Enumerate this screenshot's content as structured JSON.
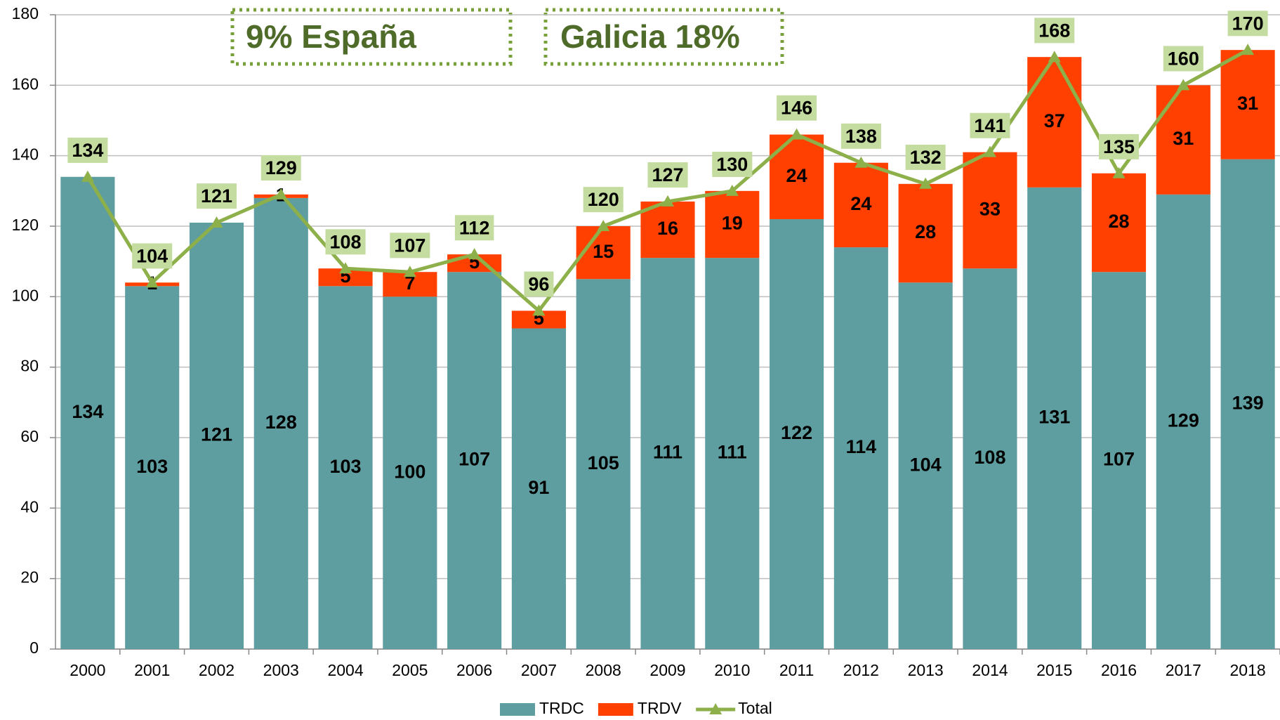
{
  "chart_data": {
    "type": "bar",
    "annotations": [
      "9% España",
      "Galicia 18%"
    ],
    "categories": [
      "2000",
      "2001",
      "2002",
      "2003",
      "2004",
      "2005",
      "2006",
      "2007",
      "2008",
      "2009",
      "2010",
      "2011",
      "2012",
      "2013",
      "2014",
      "2015",
      "2016",
      "2017",
      "2018"
    ],
    "series": [
      {
        "name": "TRDC",
        "color": "#5f9ea0",
        "values": [
          134,
          103,
          121,
          128,
          103,
          100,
          107,
          91,
          105,
          111,
          111,
          122,
          114,
          104,
          108,
          131,
          107,
          129,
          139
        ]
      },
      {
        "name": "TRDV",
        "color": "#ff4000",
        "values": [
          0,
          1,
          0,
          1,
          5,
          7,
          5,
          5,
          15,
          16,
          19,
          24,
          24,
          28,
          33,
          37,
          28,
          31,
          31
        ]
      },
      {
        "name": "Total",
        "type": "line",
        "color": "#8db04a",
        "values": [
          134,
          104,
          121,
          129,
          108,
          107,
          112,
          96,
          120,
          127,
          130,
          146,
          138,
          132,
          141,
          168,
          135,
          160,
          170
        ]
      }
    ],
    "ylim": [
      0,
      180
    ],
    "yticks": [
      0,
      20,
      40,
      60,
      80,
      100,
      120,
      140,
      160,
      180
    ],
    "grid": true,
    "legend": "bottom"
  }
}
